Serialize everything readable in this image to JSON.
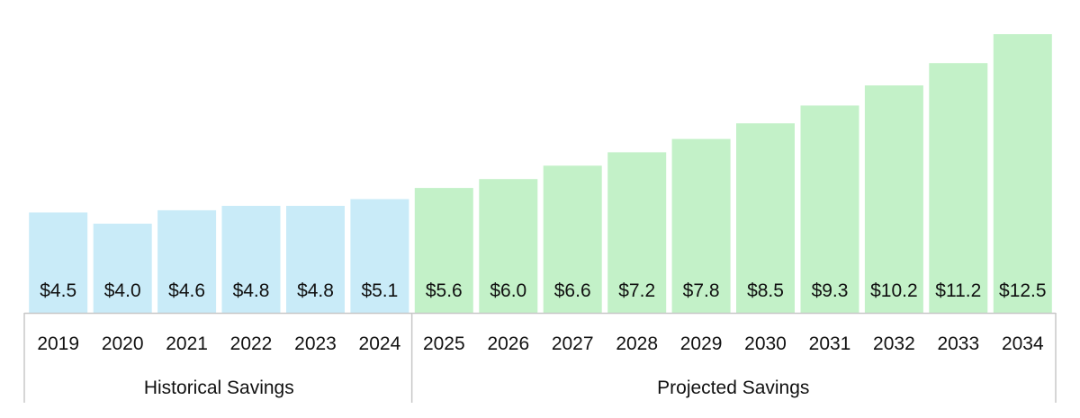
{
  "chart_data": {
    "type": "bar",
    "title": "",
    "xlabel": "",
    "ylabel": "",
    "categories": [
      "2019",
      "2020",
      "2021",
      "2022",
      "2023",
      "2024",
      "2025",
      "2026",
      "2027",
      "2028",
      "2029",
      "2030",
      "2031",
      "2032",
      "2033",
      "2034"
    ],
    "values": [
      4.5,
      4.0,
      4.6,
      4.8,
      4.8,
      5.1,
      5.6,
      6.0,
      6.6,
      7.2,
      7.8,
      8.5,
      9.3,
      10.2,
      11.2,
      12.5
    ],
    "value_labels": [
      "$4.5",
      "$4.0",
      "$4.6",
      "$4.8",
      "$4.8",
      "$5.1",
      "$5.6",
      "$6.0",
      "$6.6",
      "$7.2",
      "$7.8",
      "$8.5",
      "$9.3",
      "$10.2",
      "$11.2",
      "$12.5"
    ],
    "ylim": [
      0,
      12.5
    ],
    "grid": false,
    "groups": [
      {
        "label": "Historical Savings",
        "start": 0,
        "end": 5,
        "color": "#c9ebf8"
      },
      {
        "label": "Projected Savings",
        "start": 6,
        "end": 15,
        "color": "#c3f1c8"
      }
    ]
  }
}
